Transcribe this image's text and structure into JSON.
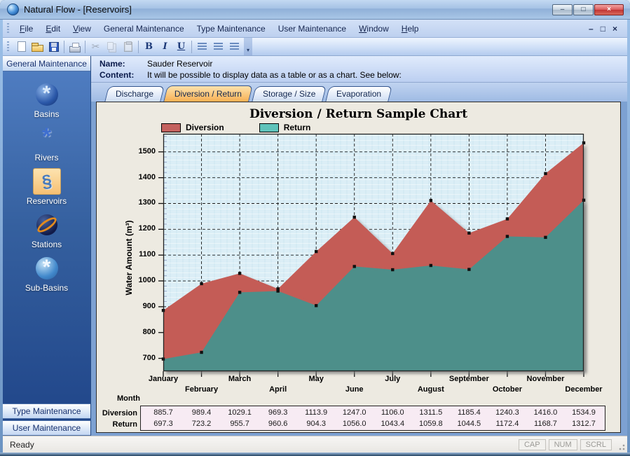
{
  "window": {
    "title": "Natural Flow - [Reservoirs]",
    "controls": [
      {
        "name": "minimize",
        "glyph": "–"
      },
      {
        "name": "maximize",
        "glyph": "□"
      },
      {
        "name": "close",
        "glyph": "×"
      }
    ]
  },
  "menubar": {
    "items": [
      {
        "label": "File",
        "accel": "F"
      },
      {
        "label": "Edit",
        "accel": "E"
      },
      {
        "label": "View",
        "accel": "V"
      },
      {
        "label": "General Maintenance"
      },
      {
        "label": "Type Maintenance"
      },
      {
        "label": "User Maintenance"
      },
      {
        "label": "Window",
        "accel": "W"
      },
      {
        "label": "Help",
        "accel": "H"
      }
    ],
    "mdi_controls": [
      {
        "name": "minimize",
        "glyph": "–"
      },
      {
        "name": "restore",
        "glyph": "□"
      },
      {
        "name": "close",
        "glyph": "×"
      }
    ]
  },
  "toolbar": {
    "buttons": [
      {
        "name": "new",
        "enabled": true
      },
      {
        "name": "open",
        "enabled": true
      },
      {
        "name": "save",
        "enabled": true
      },
      {
        "sep": true
      },
      {
        "name": "print",
        "enabled": true
      },
      {
        "sep": true
      },
      {
        "name": "cut",
        "glyph": "✂",
        "enabled": false
      },
      {
        "name": "copy",
        "enabled": false
      },
      {
        "name": "paste",
        "enabled": false
      },
      {
        "sep": true
      },
      {
        "name": "bold",
        "glyph": "B",
        "enabled": true
      },
      {
        "name": "italic",
        "glyph": "I",
        "enabled": true
      },
      {
        "name": "underline",
        "glyph": "U",
        "enabled": true
      },
      {
        "sep": true
      },
      {
        "name": "align-left",
        "enabled": true
      },
      {
        "name": "align-center",
        "enabled": true
      },
      {
        "name": "align-right",
        "enabled": true
      }
    ],
    "more_glyph": "▾"
  },
  "sidebar": {
    "header": "General Maintenance",
    "items": [
      {
        "label": "Basins",
        "selected": false
      },
      {
        "label": "Rivers",
        "selected": false
      },
      {
        "label": "Reservoirs",
        "selected": true
      },
      {
        "label": "Stations",
        "selected": false
      },
      {
        "label": "Sub-Basins",
        "selected": false
      }
    ],
    "footer_items": [
      "Type Maintenance",
      "User Maintenance"
    ]
  },
  "record": {
    "name_label": "Name:",
    "name_value": "Sauder Reservoir",
    "content_label": "Content:",
    "content_value": "It will be possible to display data as a table or as a chart. See below:"
  },
  "tabs": [
    {
      "label": "Discharge",
      "active": false
    },
    {
      "label": "Diversion / Return",
      "active": true
    },
    {
      "label": "Storage / Size",
      "active": false
    },
    {
      "label": "Evaporation",
      "active": false
    }
  ],
  "chart_data": {
    "type": "area",
    "title": "Diversion / Return Sample Chart",
    "xlabel": "Month",
    "ylabel": "Water Amount (m³)",
    "categories": [
      "January",
      "February",
      "March",
      "April",
      "May",
      "June",
      "July",
      "August",
      "September",
      "October",
      "November",
      "December"
    ],
    "series": [
      {
        "name": "Diversion",
        "color": "#c45b57",
        "legend_color": "#c4615e",
        "values": [
          885.7,
          989.4,
          1029.1,
          969.3,
          1113.9,
          1247.0,
          1106.0,
          1311.5,
          1185.4,
          1240.3,
          1416.0,
          1534.9
        ]
      },
      {
        "name": "Return",
        "color": "#4d8f8a",
        "legend_color": "#5fc3ba",
        "values": [
          697.3,
          723.2,
          955.7,
          960.6,
          904.3,
          1056.0,
          1043.4,
          1059.8,
          1044.5,
          1172.4,
          1168.7,
          1312.7
        ]
      }
    ],
    "ylim": [
      650,
      1570
    ],
    "yticks": [
      700,
      800,
      900,
      1000,
      1100,
      1200,
      1300,
      1400,
      1500
    ],
    "grid": true,
    "legend_position": "top-left",
    "marker": "square"
  },
  "data_table": {
    "month_label": "Month",
    "row_labels": [
      "Diversion",
      "Return"
    ]
  },
  "statusbar": {
    "message": "Ready",
    "panes": [
      "CAP",
      "NUM",
      "SCRL"
    ]
  },
  "colors": {
    "active_tab": "#f8b053",
    "selected_nav_bg": "#f9d49a",
    "plot_background": "#dbeef6",
    "panel_background": "#edeae1"
  }
}
